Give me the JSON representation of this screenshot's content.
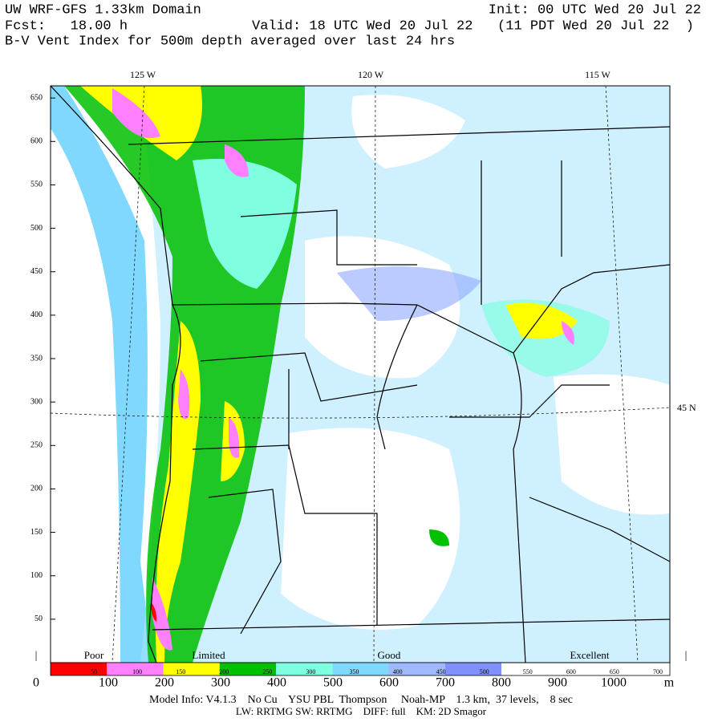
{
  "header": {
    "title": "UW WRF-GFS 1.33km Domain",
    "init": "Init: 00 UTC Wed 20 Jul 22",
    "forecast": "Fcst:   18.00 h",
    "valid": "Valid: 18 UTC Wed 20 Jul 22   (11 PDT Wed 20 Jul 22  )",
    "field": "B-V Vent Index for 500m depth averaged over last 24 hrs"
  },
  "map": {
    "longitude_labels": [
      "125 W",
      "120 W",
      "115 W"
    ],
    "latitude_label": "45 N",
    "ylim": [
      0,
      664
    ],
    "yticks": [
      50,
      100,
      150,
      200,
      250,
      300,
      350,
      400,
      450,
      500,
      550,
      600,
      650
    ]
  },
  "colorbar": {
    "categories": [
      "Poor",
      "Limited",
      "Good",
      "Excellent"
    ],
    "colors": [
      "#ff0000",
      "#ff80ff",
      "#ffff00",
      "#00c000",
      "#80ffe0",
      "#80d8ff",
      "#a0b8ff",
      "#8090ff"
    ],
    "ticks": [
      50,
      100,
      150,
      200,
      250,
      300,
      350,
      400,
      450,
      500,
      550,
      600,
      650,
      700
    ]
  },
  "distance_axis": {
    "xlim": [
      0,
      1100
    ],
    "xticks": [
      0,
      100,
      200,
      300,
      400,
      500,
      600,
      700,
      800,
      900,
      1000
    ],
    "unit": "m"
  },
  "footer": {
    "model_info": "Model Info: V4.1.3    No Cu    YSU PBL  Thompson     Noah-MP    1.3 km,  37 levels,    8 sec",
    "physics": "LW: RRTMG SW: RRTMG    DIFF: full    KM: 2D Smagor"
  }
}
